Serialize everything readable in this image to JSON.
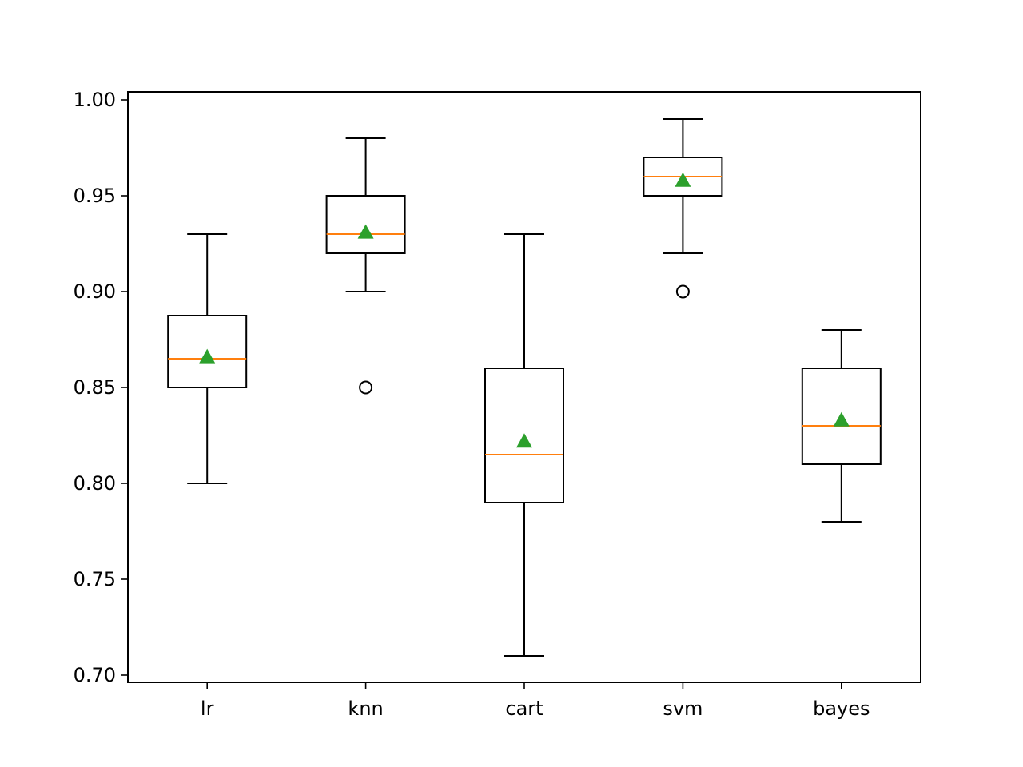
{
  "chart_data": {
    "type": "box",
    "title": "",
    "xlabel": "",
    "ylabel": "",
    "ylim": [
      0.697,
      1.004
    ],
    "yticks": [
      0.7,
      0.75,
      0.8,
      0.85,
      0.9,
      0.95,
      1.0
    ],
    "ytick_labels": [
      "0.70",
      "0.75",
      "0.80",
      "0.85",
      "0.90",
      "0.95",
      "1.00"
    ],
    "categories": [
      "lr",
      "knn",
      "cart",
      "svm",
      "bayes"
    ],
    "grid": false,
    "showmeans": true,
    "colors": {
      "box": "#000000",
      "median": "#ff7f0e",
      "mean": "#2ca02c",
      "outlier": "#000000"
    },
    "series": [
      {
        "name": "lr",
        "whisker_low": 0.8,
        "q1": 0.85,
        "median": 0.865,
        "q3": 0.8875,
        "whisker_high": 0.93,
        "mean": 0.866,
        "outliers": []
      },
      {
        "name": "knn",
        "whisker_low": 0.9,
        "q1": 0.92,
        "median": 0.93,
        "q3": 0.95,
        "whisker_high": 0.98,
        "mean": 0.931,
        "outliers": [
          0.85
        ]
      },
      {
        "name": "cart",
        "whisker_low": 0.71,
        "q1": 0.79,
        "median": 0.815,
        "q3": 0.86,
        "whisker_high": 0.93,
        "mean": 0.822,
        "outliers": []
      },
      {
        "name": "svm",
        "whisker_low": 0.92,
        "q1": 0.95,
        "median": 0.96,
        "q3": 0.97,
        "whisker_high": 0.99,
        "mean": 0.958,
        "outliers": [
          0.9
        ]
      },
      {
        "name": "bayes",
        "whisker_low": 0.78,
        "q1": 0.81,
        "median": 0.83,
        "q3": 0.86,
        "whisker_high": 0.88,
        "mean": 0.833,
        "outliers": []
      }
    ]
  }
}
